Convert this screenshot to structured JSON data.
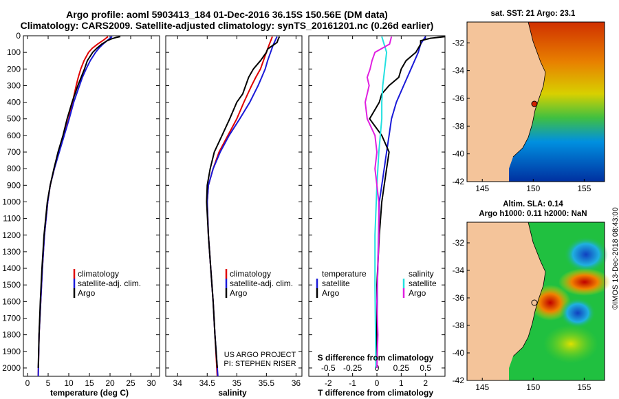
{
  "header": {
    "title_line1": "Argo profile: aoml 5903413_184 01-Dec-2016 36.15S 150.56E (DM data)",
    "title_line2": "Climatology: CARS2009. Satellite-adjusted climatology: synTS_20161201.nc (0.26d earlier)"
  },
  "credits": {
    "project": "US ARGO PROJECT",
    "pi": "PI: STEPHEN RISER",
    "imos": "©IMOS 13-Dec-2018 08:43:00"
  },
  "colors": {
    "climatology": "#e00000",
    "satellite": "#1a1ad8",
    "argo": "#000000",
    "sat_salinity": "#22e0e0",
    "argo_salinity_diff": "#e020e0"
  },
  "chart_data": [
    {
      "type": "line",
      "panel": "temperature",
      "xlabel": "temperature (deg C)",
      "ylabel": "",
      "xlim": [
        -1,
        32
      ],
      "ylim": [
        2050,
        0
      ],
      "y_inverted": true,
      "xticks": [
        "0",
        "5",
        "10",
        "15",
        "20",
        "25",
        "30"
      ],
      "yticks": [
        "0",
        "100",
        "200",
        "300",
        "400",
        "500",
        "600",
        "700",
        "800",
        "900",
        "1000",
        "1100",
        "1200",
        "1300",
        "1400",
        "1500",
        "1600",
        "1700",
        "1800",
        "1900",
        "2000"
      ],
      "legend": [
        "climatology",
        "satellite-adj. clim.",
        "Argo"
      ],
      "series": [
        {
          "name": "climatology",
          "y": [
            5,
            25,
            50,
            75,
            100,
            150,
            200,
            250,
            300,
            400,
            500,
            600,
            700,
            800,
            900,
            1000,
            1200,
            1400,
            1600,
            1800,
            2050
          ],
          "values": [
            19.5,
            18.5,
            17,
            15.7,
            14.8,
            13.7,
            12.9,
            12.3,
            11.8,
            10.9,
            10,
            8.8,
            7.6,
            6.5,
            5.5,
            4.9,
            4.1,
            3.6,
            3.2,
            2.8,
            2.6
          ]
        },
        {
          "name": "satellite-adj. clim.",
          "y": [
            5,
            25,
            50,
            75,
            100,
            150,
            200,
            250,
            300,
            400,
            500,
            600,
            700,
            800,
            900,
            1000,
            1200,
            1400,
            1600,
            1800,
            2050
          ],
          "values": [
            20.5,
            19.5,
            18.3,
            17.3,
            16.5,
            15.2,
            14.2,
            13.3,
            12.6,
            11.2,
            10.1,
            8.9,
            7.7,
            6.5,
            5.5,
            4.9,
            4.1,
            3.6,
            3.2,
            2.8,
            2.6
          ]
        },
        {
          "name": "Argo",
          "y": [
            5,
            10,
            20,
            30,
            50,
            75,
            100,
            150,
            200,
            250,
            300,
            400,
            500,
            600,
            700,
            800,
            900,
            1000,
            1200,
            1400,
            1600,
            1800,
            2000
          ],
          "values": [
            22.5,
            21.5,
            20.2,
            19.3,
            18,
            16.8,
            15.8,
            14.5,
            13.8,
            13,
            12.2,
            10.8,
            9.6,
            8.6,
            7.4,
            6.4,
            5.5,
            4.8,
            4.0,
            3.5,
            3.1,
            2.8,
            2.6
          ]
        }
      ]
    },
    {
      "type": "line",
      "panel": "salinity",
      "xlabel": "salinity",
      "ylabel": "",
      "xlim": [
        33.8,
        36.1
      ],
      "ylim": [
        2050,
        0
      ],
      "y_inverted": true,
      "xticks": [
        "34",
        "34.5",
        "35",
        "35.5",
        "36"
      ],
      "legend": [
        "climatology",
        "satellite-adj. clim.",
        "Argo"
      ],
      "series": [
        {
          "name": "climatology",
          "y": [
            5,
            50,
            100,
            150,
            200,
            250,
            300,
            400,
            500,
            600,
            700,
            800,
            900,
            1000,
            1200,
            1400,
            1600,
            1800,
            2050
          ],
          "values": [
            35.6,
            35.55,
            35.5,
            35.45,
            35.4,
            35.32,
            35.25,
            35.12,
            35.0,
            34.85,
            34.7,
            34.6,
            34.52,
            34.5,
            34.52,
            34.56,
            34.6,
            34.63,
            34.67
          ]
        },
        {
          "name": "satellite-adj. clim.",
          "y": [
            5,
            50,
            100,
            150,
            200,
            250,
            300,
            400,
            500,
            600,
            700,
            800,
            900,
            1000,
            1200,
            1400,
            1600,
            1800,
            2050
          ],
          "values": [
            35.68,
            35.62,
            35.57,
            35.52,
            35.48,
            35.42,
            35.36,
            35.22,
            35.05,
            34.87,
            34.72,
            34.6,
            34.52,
            34.5,
            34.52,
            34.56,
            34.6,
            34.63,
            34.68
          ]
        },
        {
          "name": "Argo",
          "y": [
            5,
            20,
            40,
            60,
            80,
            100,
            150,
            200,
            250,
            300,
            350,
            400,
            500,
            600,
            700,
            800,
            900,
            1000,
            1200,
            1400,
            1600,
            1800,
            2000
          ],
          "values": [
            35.72,
            35.7,
            35.68,
            35.6,
            35.52,
            35.5,
            35.4,
            35.28,
            35.2,
            35.15,
            35.1,
            35.0,
            34.88,
            34.75,
            34.62,
            34.55,
            34.5,
            34.49,
            34.52,
            34.56,
            34.6,
            34.63,
            34.67
          ]
        }
      ]
    },
    {
      "type": "line",
      "panel": "difference",
      "xlabel": "T difference from climatology",
      "title": "S difference from climatology",
      "ylabel": "",
      "xlim": [
        -2.8,
        2.8
      ],
      "ylim": [
        2050,
        0
      ],
      "y_inverted": true,
      "xticks": [
        "-2",
        "-1",
        "0",
        "1",
        "2"
      ],
      "xticks_top": [
        "-0.5",
        "-0.25",
        "0",
        "0.25",
        "0.5"
      ],
      "legend_left": [
        "temperature",
        "satellite",
        "Argo"
      ],
      "legend_right": [
        "salinity",
        "satellite",
        "Argo"
      ],
      "series": [
        {
          "name": "temperature satellite",
          "y": [
            5,
            50,
            100,
            200,
            300,
            400,
            500,
            600,
            700,
            800,
            900,
            1000,
            1500,
            2000
          ],
          "values": [
            2.0,
            1.8,
            1.7,
            1.4,
            1.1,
            0.8,
            0.6,
            0.5,
            0.4,
            0.3,
            0.2,
            0.1,
            0.02,
            0.0
          ]
        },
        {
          "name": "temperature Argo",
          "y": [
            5,
            15,
            30,
            50,
            100,
            150,
            200,
            250,
            300,
            350,
            400,
            500,
            600,
            700,
            800,
            900,
            1000,
            1200,
            1500,
            1800,
            2000
          ],
          "values": [
            2.8,
            2.2,
            1.8,
            1.8,
            1.6,
            1.2,
            1.0,
            0.9,
            0.5,
            0.2,
            0.1,
            -0.3,
            0.2,
            0.5,
            0.4,
            0.3,
            0.2,
            0.1,
            0.0,
            0.0,
            0.0
          ]
        },
        {
          "name": "salinity satellite",
          "y": [
            5,
            100,
            200,
            300,
            400,
            500,
            700,
            900,
            1200,
            1500,
            2000
          ],
          "values": [
            0.05,
            0.1,
            0.08,
            0.06,
            0.05,
            0.05,
            0.02,
            0.0,
            -0.02,
            -0.02,
            -0.01
          ]
        },
        {
          "name": "salinity Argo",
          "y": [
            5,
            50,
            100,
            150,
            200,
            250,
            300,
            400,
            500,
            600,
            700,
            800,
            900,
            1000,
            1200,
            1400,
            1600,
            1800,
            2000
          ],
          "values": [
            0.15,
            0.13,
            -0.02,
            -0.05,
            -0.07,
            -0.1,
            -0.08,
            -0.12,
            -0.1,
            -0.02,
            0.0,
            -0.02,
            0.0,
            0.02,
            0.02,
            0.01,
            0.0,
            0.01,
            0.0
          ]
        }
      ]
    },
    {
      "type": "heatmap",
      "panel": "sst-map",
      "title": "sat. SST: 21 Argo: 23.1",
      "xticks": [
        "145",
        "150",
        "155"
      ],
      "yticks": [
        "-32",
        "-34",
        "-36",
        "-38",
        "-40",
        "-42"
      ],
      "xlim": [
        143.5,
        157
      ],
      "ylim": [
        -42,
        -30.5
      ]
    },
    {
      "type": "heatmap",
      "panel": "sla-map",
      "title_line1": "Altim. SLA: 0.14",
      "title_line2": "Argo h1000: 0.11 h2000: NaN",
      "xticks": [
        "145",
        "150",
        "155"
      ],
      "yticks": [
        "-32",
        "-34",
        "-36",
        "-38",
        "-40",
        "-42"
      ],
      "xlim": [
        143.5,
        157
      ],
      "ylim": [
        -42,
        -30.5
      ]
    }
  ]
}
